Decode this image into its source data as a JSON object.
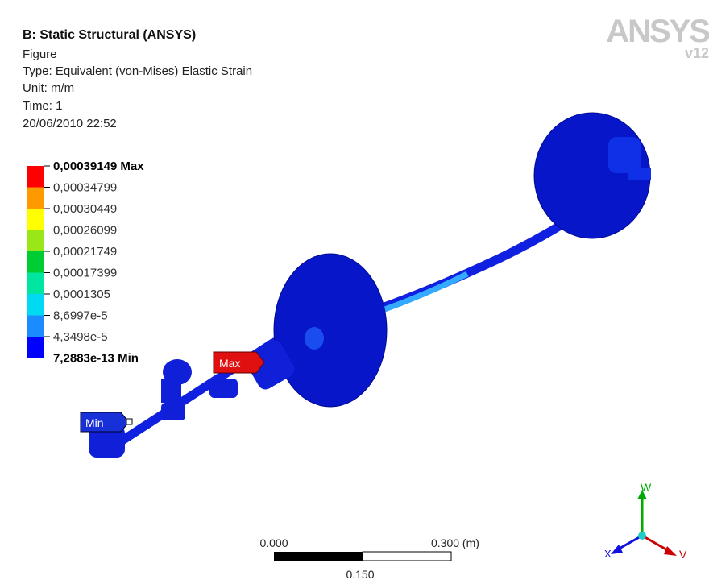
{
  "header": {
    "title": "B: Static Structural (ANSYS)",
    "lines": [
      "Figure",
      "Type: Equivalent (von-Mises) Elastic Strain",
      "Unit: m/m",
      "Time: 1",
      "20/06/2010 22:52"
    ]
  },
  "legend": {
    "labels": [
      "0,00039149 Max",
      "0,00034799",
      "0,00030449",
      "0,00026099",
      "0,00021749",
      "0,00017399",
      "0,0001305",
      "8,6997e-5",
      "4,3498e-5",
      "7,2883e-13 Min"
    ],
    "colors": [
      "#ff0000",
      "#ff9900",
      "#ffff00",
      "#99e619",
      "#00cc33",
      "#00e6a0",
      "#00d9f2",
      "#1a8cff",
      "#0000ff"
    ]
  },
  "markers": {
    "max": "Max",
    "min": "Min"
  },
  "scale": {
    "start": "0.000",
    "end": "0.300 (m)",
    "middle": "0.150"
  },
  "triad": {
    "w": "W",
    "x": "X",
    "v": "V"
  },
  "logo": {
    "name": "ANSYS",
    "version": "v12"
  }
}
